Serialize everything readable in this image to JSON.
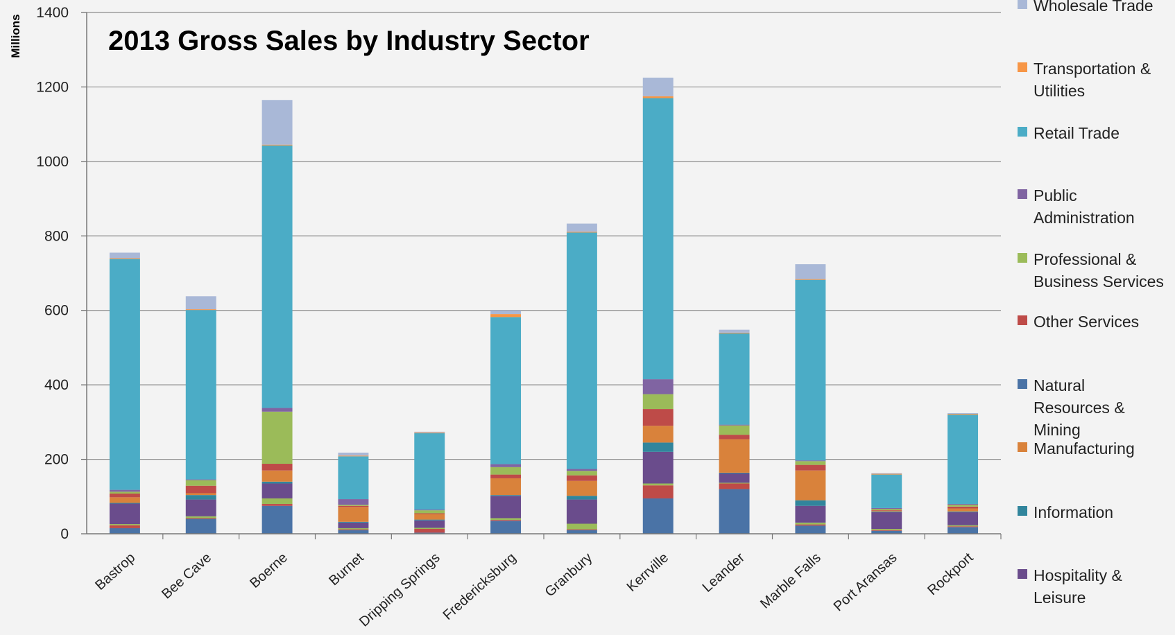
{
  "chart_data": {
    "type": "bar",
    "stacked": true,
    "title": "2013 Gross Sales by Industry Sector",
    "ylabel": "Millions",
    "xlabel": "",
    "ylim": [
      0,
      1400
    ],
    "yticks": [
      0,
      200,
      400,
      600,
      800,
      1000,
      1200,
      1400
    ],
    "grid": true,
    "legend_position": "right",
    "categories": [
      "Bastrop",
      "Bee Cave",
      "Boerne",
      "Burnet",
      "Dripping Springs",
      "Fredericksburg",
      "Granbury",
      "Kerrville",
      "Leander",
      "Marble Falls",
      "Port Aransas",
      "Rockport"
    ],
    "series": [
      {
        "name": "Natural Resources & Mining",
        "color": "#4A73A6",
        "values": [
          15,
          40,
          75,
          10,
          3,
          35,
          10,
          95,
          120,
          22,
          8,
          18
        ]
      },
      {
        "name": "Other Services",
        "color": "#BE4B48",
        "values": [
          8,
          2,
          5,
          2,
          10,
          2,
          2,
          35,
          15,
          3,
          2,
          2
        ]
      },
      {
        "name": "Professional & Business Services",
        "color": "#9BBB59",
        "values": [
          3,
          5,
          15,
          3,
          3,
          5,
          15,
          5,
          2,
          5,
          3,
          3
        ]
      },
      {
        "name": "Hospitality & Leisure",
        "color": "#6A4C8C",
        "values": [
          55,
          45,
          40,
          15,
          20,
          60,
          65,
          85,
          25,
          45,
          45,
          35
        ]
      },
      {
        "name": "Information",
        "color": "#31859C",
        "values": [
          2,
          12,
          5,
          2,
          2,
          2,
          10,
          25,
          2,
          15,
          2,
          2
        ]
      },
      {
        "name": "Manufacturing",
        "color": "#D9823B",
        "values": [
          15,
          5,
          30,
          40,
          15,
          45,
          40,
          45,
          90,
          80,
          2,
          8
        ]
      },
      {
        "name": "Other Services",
        "color": "#BE4B48",
        "values": [
          10,
          20,
          18,
          3,
          2,
          10,
          15,
          45,
          12,
          15,
          2,
          5
        ]
      },
      {
        "name": "Professional & Business Services",
        "color": "#9BBB59",
        "values": [
          5,
          15,
          140,
          3,
          8,
          20,
          12,
          40,
          25,
          10,
          3,
          5
        ]
      },
      {
        "name": "Public Administration",
        "color": "#8064A2",
        "values": [
          5,
          2,
          10,
          15,
          2,
          8,
          5,
          40,
          2,
          2,
          2,
          2
        ]
      },
      {
        "name": "Retail Trade",
        "color": "#4BACC6",
        "values": [
          620,
          455,
          705,
          115,
          205,
          395,
          635,
          755,
          245,
          485,
          90,
          240
        ]
      },
      {
        "name": "Transportation & Utilities",
        "color": "#F79646",
        "values": [
          2,
          2,
          2,
          2,
          2,
          8,
          2,
          5,
          2,
          2,
          2,
          2
        ]
      },
      {
        "name": "Wholesale Trade",
        "color": "#A9B8D7",
        "values": [
          15,
          35,
          120,
          8,
          2,
          10,
          22,
          50,
          8,
          40,
          2,
          2
        ]
      }
    ]
  },
  "legend": {
    "items": [
      {
        "lines": [
          "Wholesale Trade"
        ],
        "color": "#A9B8D7"
      },
      {
        "lines": [
          "Transportation &",
          "Utilities"
        ],
        "color": "#F79646"
      },
      {
        "lines": [
          "Retail Trade"
        ],
        "color": "#4BACC6"
      },
      {
        "lines": [
          "Public",
          "Administration"
        ],
        "color": "#8064A2"
      },
      {
        "lines": [
          "Professional &",
          "Business Services"
        ],
        "color": "#9BBB59"
      },
      {
        "lines": [
          "Other Services"
        ],
        "color": "#BE4B48"
      },
      {
        "lines": [
          "Natural",
          "Resources &",
          "Mining"
        ],
        "color": "#4A73A6"
      },
      {
        "lines": [
          "Manufacturing"
        ],
        "color": "#D9823B"
      },
      {
        "lines": [
          "Information"
        ],
        "color": "#31859C"
      },
      {
        "lines": [
          "Hospitality &",
          "Leisure"
        ],
        "color": "#6A4C8C"
      }
    ]
  }
}
